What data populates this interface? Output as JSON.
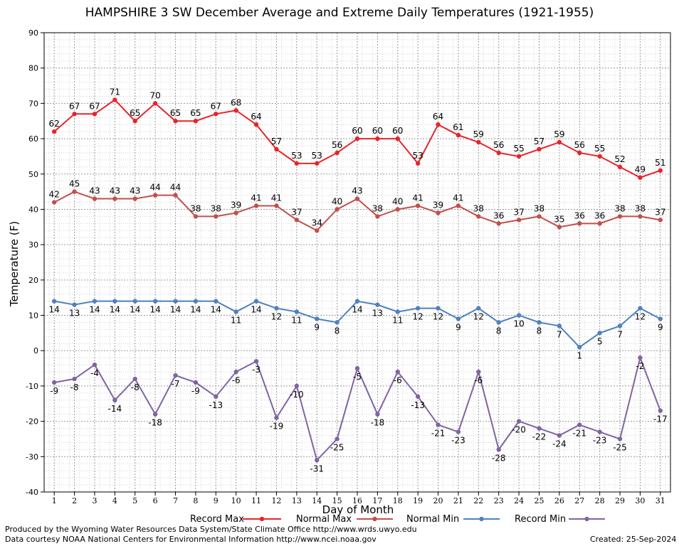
{
  "chart_data": {
    "type": "line",
    "title": "HAMPSHIRE 3 SW December Average and Extreme Daily Temperatures (1921-1955)",
    "xlabel": "Day of Month",
    "ylabel": "Temperature (F)",
    "ylim": [
      -40,
      90
    ],
    "yticks": [
      -40,
      -30,
      -20,
      -10,
      0,
      10,
      20,
      30,
      40,
      50,
      60,
      70,
      80,
      90
    ],
    "x": [
      1,
      2,
      3,
      4,
      5,
      6,
      7,
      8,
      9,
      10,
      11,
      12,
      13,
      14,
      15,
      16,
      17,
      18,
      19,
      20,
      21,
      22,
      23,
      24,
      25,
      26,
      27,
      28,
      29,
      30,
      31
    ],
    "grid": true,
    "legend_position": "bottom",
    "series": [
      {
        "name": "Record Max",
        "color": "#e8242a",
        "values": [
          62,
          67,
          67,
          71,
          65,
          70,
          65,
          65,
          67,
          68,
          64,
          57,
          53,
          53,
          56,
          60,
          60,
          60,
          53,
          64,
          61,
          59,
          56,
          55,
          57,
          59,
          56,
          55,
          52,
          49,
          51
        ]
      },
      {
        "name": "Normal Max",
        "color": "#c0504d",
        "values": [
          42,
          45,
          43,
          43,
          43,
          44,
          44,
          38,
          38,
          39,
          41,
          41,
          37,
          34,
          40,
          43,
          38,
          40,
          41,
          39,
          41,
          38,
          36,
          37,
          38,
          35,
          36,
          36,
          38,
          38,
          37
        ]
      },
      {
        "name": "Normal Min",
        "color": "#4f81bd",
        "values": [
          14,
          13,
          14,
          14,
          14,
          14,
          14,
          14,
          14,
          11,
          14,
          12,
          11,
          9,
          8,
          14,
          13,
          11,
          12,
          12,
          9,
          12,
          8,
          10,
          8,
          7,
          1,
          5,
          7,
          12,
          9
        ]
      },
      {
        "name": "Record Min",
        "color": "#8064a2",
        "values": [
          -9,
          -8,
          -4,
          -14,
          -8,
          -18,
          -7,
          -9,
          -13,
          -6,
          -3,
          -19,
          -10,
          -31,
          -25,
          -5,
          -18,
          -6,
          -13,
          -21,
          -23,
          -6,
          -28,
          -20,
          -22,
          -24,
          -21,
          -23,
          -25,
          -2,
          -17
        ]
      }
    ]
  },
  "footer": {
    "producer": "Produced by the Wyoming Water Resources Data System/State Climate Office http://www.wrds.uwyo.edu",
    "courtesy": "Data courtesy NOAA National Centers for Environmental Information http://www.ncei.noaa.gov",
    "created": "Created:  25-Sep-2024"
  }
}
